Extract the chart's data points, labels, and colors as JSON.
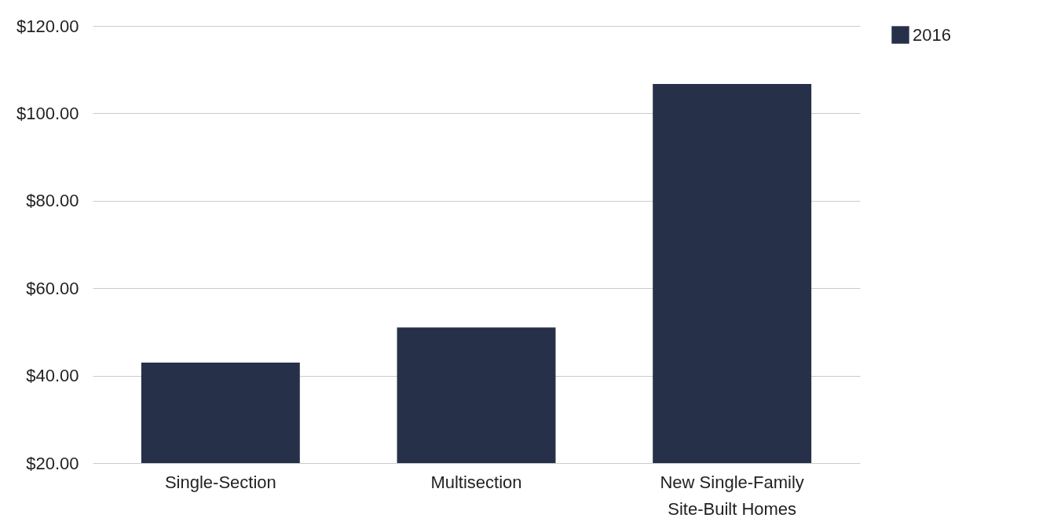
{
  "chart_data": {
    "type": "bar",
    "categories": [
      "Single-Section",
      "Multisection",
      "New Single-Family\nSite-Built Homes"
    ],
    "series": [
      {
        "name": "2016",
        "color": "#263048",
        "values": [
          43.0,
          51.0,
          106.7
        ]
      }
    ],
    "ylim": [
      20,
      120
    ],
    "yticks": [
      {
        "value": 20,
        "label": "$20.00"
      },
      {
        "value": 40,
        "label": "$40.00"
      },
      {
        "value": 60,
        "label": "$60.00"
      },
      {
        "value": 80,
        "label": "$80.00"
      },
      {
        "value": 100,
        "label": "$100.00"
      },
      {
        "value": 120,
        "label": "$120.00"
      }
    ],
    "grid": "y",
    "legend": "top right"
  }
}
